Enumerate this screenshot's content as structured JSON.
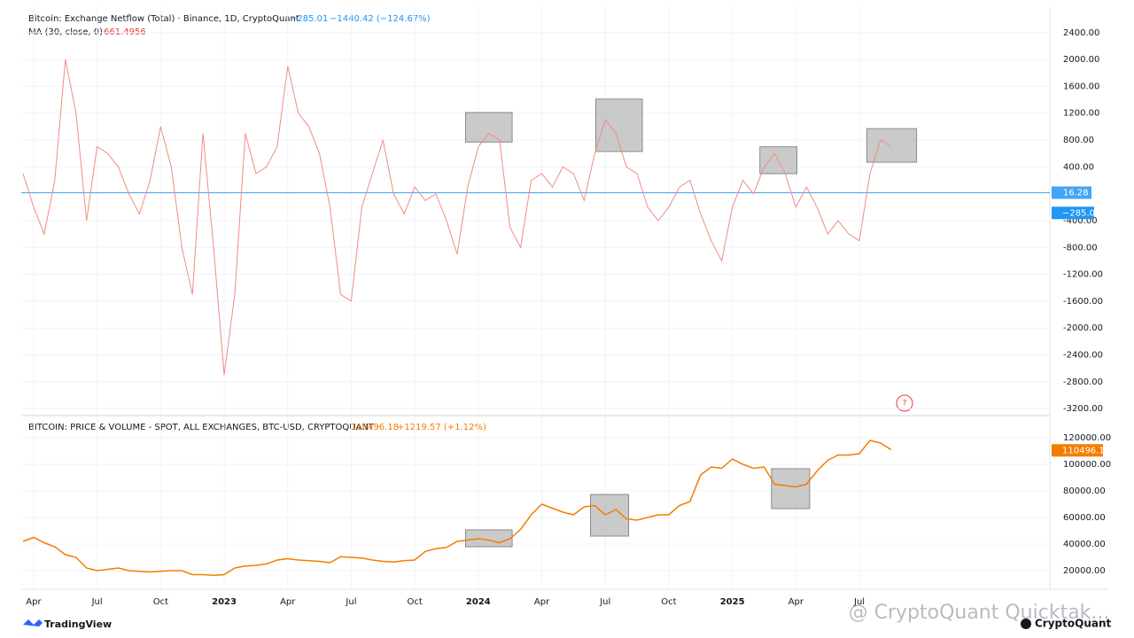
{
  "chart_data": [
    {
      "type": "line",
      "title": "Bitcoin: Exchange Netflow (Total) · Binance, 1D, CryptoQuant",
      "last": "−285.01",
      "change": "−1440.42 (−124.67%)",
      "series": [
        {
          "name": "MA (30, close, 0)",
          "value_label": "661.4956",
          "color": "#f28b82",
          "values": [
            300,
            -200,
            -600,
            200,
            2000,
            1200,
            -400,
            700,
            600,
            400,
            0,
            -300,
            200,
            1000,
            400,
            -800,
            -1500,
            900,
            -800,
            -2700,
            -1500,
            900,
            300,
            400,
            700,
            1900,
            1200,
            1000,
            600,
            -200,
            -1500,
            -1600,
            -200,
            300,
            800,
            0,
            -300,
            100,
            -100,
            0,
            -400,
            -900,
            100,
            700,
            900,
            800,
            -500,
            -800,
            200,
            300,
            100,
            400,
            300,
            -100,
            600,
            1100,
            900,
            400,
            300,
            -200,
            -400,
            -200,
            100,
            200,
            -300,
            -700,
            -1000,
            -200,
            200,
            0,
            400,
            600,
            300,
            -200,
            100,
            -200,
            -600,
            -400,
            -600,
            -700,
            300,
            800,
            700
          ]
        }
      ],
      "categories": [
        null,
        "Apr",
        null,
        null,
        null,
        null,
        null,
        "Jul",
        null,
        null,
        null,
        null,
        null,
        "Oct",
        null,
        null,
        null,
        null,
        null,
        "2023",
        null,
        null,
        null,
        null,
        null,
        "Apr",
        null,
        null,
        null,
        null,
        null,
        "Jul",
        null,
        null,
        null,
        null,
        null,
        "Oct",
        null,
        null,
        null,
        null,
        null,
        "2024",
        null,
        null,
        null,
        null,
        null,
        "Apr",
        null,
        null,
        null,
        null,
        null,
        "Jul",
        null,
        null,
        null,
        null,
        null,
        "Oct",
        null,
        null,
        null,
        null,
        null,
        "2025",
        null,
        null,
        null,
        null,
        null,
        "Apr",
        null,
        null,
        null,
        null,
        null,
        "Jul",
        null,
        null,
        null
      ],
      "ylim": [
        -3290,
        2780
      ],
      "yticks": [
        {
          "value": 2400,
          "label": "2400.00"
        },
        {
          "value": 2000,
          "label": "2000.00"
        },
        {
          "value": 1600,
          "label": "1600.00"
        },
        {
          "value": 1200,
          "label": "1200.00"
        },
        {
          "value": 800,
          "label": "800.00"
        },
        {
          "value": 400,
          "label": "400.00"
        },
        {
          "value": -400,
          "label": "-400.00"
        },
        {
          "value": -800,
          "label": "-800.00"
        },
        {
          "value": -1200,
          "label": "-1200.00"
        },
        {
          "value": -1600,
          "label": "-1600.00"
        },
        {
          "value": -2000,
          "label": "-2000.00"
        },
        {
          "value": -2400,
          "label": "-2400.00"
        },
        {
          "value": -2800,
          "label": "-2800.00"
        },
        {
          "value": -3200,
          "label": "-3200.00"
        }
      ],
      "level": {
        "value": 16.28,
        "color": "#42a5f5"
      },
      "last_value": {
        "value": -285.01,
        "label": "−285.01",
        "color": "#2196f3"
      },
      "highlights": [
        {
          "x": [
            41.8,
            46.2
          ],
          "y": [
            770,
            1210
          ]
        },
        {
          "x": [
            54.1,
            58.5
          ],
          "y": [
            630,
            1410
          ]
        },
        {
          "x": [
            69.6,
            73.1
          ],
          "y": [
            300,
            700
          ]
        },
        {
          "x": [
            79.7,
            84.4
          ],
          "y": [
            470,
            970
          ]
        }
      ],
      "grid": true
    },
    {
      "type": "line",
      "title": "BITCOIN: PRICE & VOLUME - SPOT, ALL EXCHANGES, BTC-USD, CRYPTOQUANT",
      "last": "110496.18",
      "change": "+1219.57 (+1.12%)",
      "series": [
        {
          "name": "BTC-USD",
          "color": "#f57c00",
          "values": [
            42000,
            45000,
            41000,
            38000,
            32000,
            30000,
            22000,
            20000,
            21000,
            22000,
            20000,
            19500,
            19000,
            19500,
            20000,
            20000,
            17000,
            17000,
            16500,
            17000,
            22000,
            23500,
            24000,
            25000,
            28000,
            29000,
            28000,
            27500,
            27000,
            26000,
            30500,
            30000,
            29500,
            28000,
            27000,
            26500,
            27500,
            28000,
            34500,
            36500,
            37500,
            42000,
            43000,
            44000,
            43000,
            41000,
            44000,
            51000,
            62000,
            70000,
            67000,
            64000,
            62000,
            68000,
            69000,
            62000,
            66000,
            59000,
            58000,
            60000,
            62000,
            62000,
            69000,
            72000,
            92000,
            98000,
            97000,
            104000,
            100000,
            97000,
            98000,
            85000,
            84000,
            83000,
            85000,
            95000,
            103000,
            107000,
            107000,
            108000,
            118000,
            116000,
            111000
          ]
        }
      ],
      "categories": [
        null,
        "Apr",
        null,
        null,
        null,
        null,
        null,
        "Jul",
        null,
        null,
        null,
        null,
        null,
        "Oct",
        null,
        null,
        null,
        null,
        null,
        "2023",
        null,
        null,
        null,
        null,
        null,
        "Apr",
        null,
        null,
        null,
        null,
        null,
        "Jul",
        null,
        null,
        null,
        null,
        null,
        "Oct",
        null,
        null,
        null,
        null,
        null,
        "2024",
        null,
        null,
        null,
        null,
        null,
        "Apr",
        null,
        null,
        null,
        null,
        null,
        "Jul",
        null,
        null,
        null,
        null,
        null,
        "Oct",
        null,
        null,
        null,
        null,
        null,
        "2025",
        null,
        null,
        null,
        null,
        null,
        "Apr",
        null,
        null,
        null,
        null,
        null,
        "Jul",
        null,
        null,
        null
      ],
      "ylim": [
        6000,
        136000
      ],
      "yticks": [
        {
          "value": 120000,
          "label": "120000.00"
        },
        {
          "value": 100000,
          "label": "100000.00"
        },
        {
          "value": 80000,
          "label": "80000.00"
        },
        {
          "value": 60000,
          "label": "60000.00"
        },
        {
          "value": 40000,
          "label": "40000.00"
        },
        {
          "value": 20000,
          "label": "20000.00"
        }
      ],
      "last_value": {
        "value": 110496.18,
        "label": "110496.18",
        "color": "#f57c00"
      },
      "highlights": [
        {
          "x": [
            41.8,
            46.2
          ],
          "y": [
            38000,
            50700
          ]
        },
        {
          "x": [
            53.6,
            57.2
          ],
          "y": [
            46000,
            77300
          ]
        },
        {
          "x": [
            70.7,
            74.3
          ],
          "y": [
            66700,
            96700
          ]
        }
      ],
      "grid": true
    }
  ],
  "watermark": "@ CryptoQuant Quicktak...",
  "footer": {
    "left": "TradingView",
    "right": "CryptoQuant",
    "help": "?"
  }
}
